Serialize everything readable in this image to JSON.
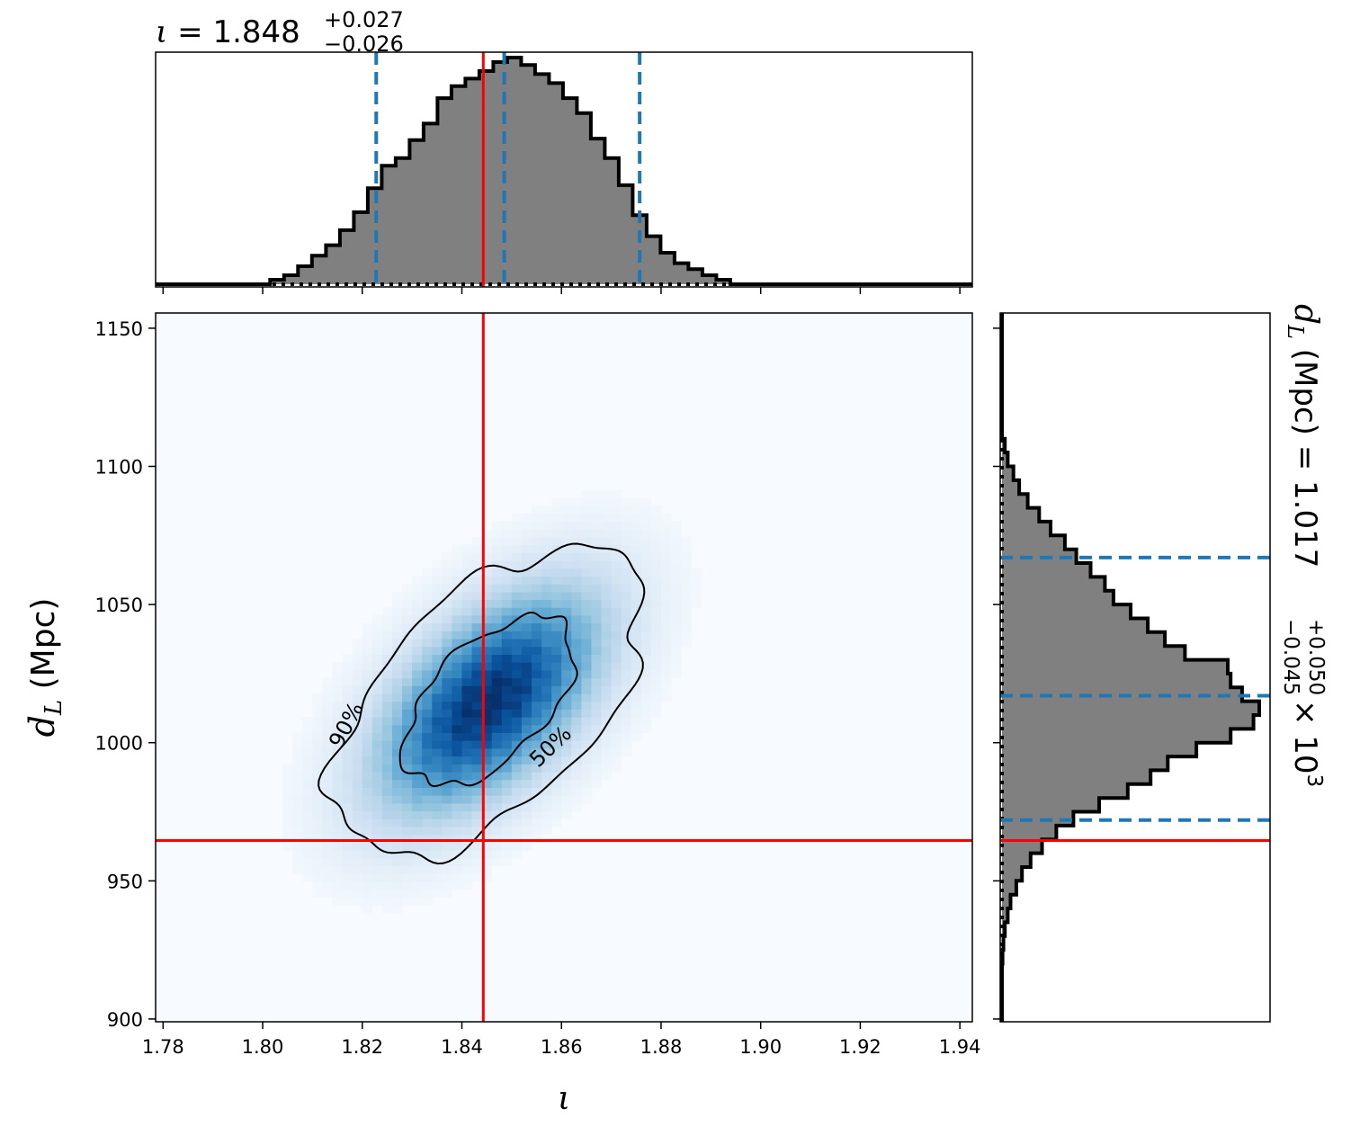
{
  "chart_data": {
    "type": "corner",
    "parameters": [
      "ι",
      "d_L"
    ],
    "top_title": {
      "symbol": "ι",
      "eq": " = ",
      "value": "1.848",
      "plus": "+0.027",
      "minus": "−0.026"
    },
    "right_title": {
      "symbol": "d",
      "sub": "L",
      "units": " (Mpc) = ",
      "value": "1.017",
      "plus": "+0.050",
      "minus": "−0.045",
      "scale": "× 10",
      "exp": "3"
    },
    "xaxis": {
      "label": "ι",
      "range": [
        1.7785,
        1.9425
      ],
      "ticks": [
        1.78,
        1.8,
        1.82,
        1.84,
        1.86,
        1.88,
        1.9,
        1.92,
        1.94
      ],
      "tick_labels": [
        "1.78",
        "1.80",
        "1.82",
        "1.84",
        "1.86",
        "1.88",
        "1.90",
        "1.92",
        "1.94"
      ]
    },
    "yaxis": {
      "label_symbol": "d",
      "label_sub": "L",
      "label_units": " (Mpc)",
      "range": [
        899,
        1155.5
      ],
      "ticks": [
        900,
        950,
        1000,
        1050,
        1100,
        1150
      ],
      "tick_labels": [
        "900",
        "950",
        "1000",
        "1050",
        "1100",
        "1150"
      ]
    },
    "injection": {
      "iota": 1.8443,
      "dL": 964.6
    },
    "iota_quantiles": [
      1.8228,
      1.8485,
      1.8757
    ],
    "dL_quantiles": [
      972.0,
      1017.0,
      1067.0
    ],
    "density": {
      "colormap": "Blues",
      "mean_iota": 1.8455,
      "mean_dL": 1015.0,
      "sd_iota": 0.0145,
      "sd_dL": 26.0,
      "correlation": 0.55
    },
    "contours": [
      {
        "label": "50%",
        "level": 0.5
      },
      {
        "label": "90%",
        "level": 0.9
      }
    ],
    "iota_histogram": {
      "bin_edges": [
        1.8015,
        1.8043,
        1.8071,
        1.8099,
        1.8127,
        1.8155,
        1.8183,
        1.8211,
        1.8239,
        1.8267,
        1.8295,
        1.8323,
        1.8351,
        1.8379,
        1.8407,
        1.8435,
        1.8463,
        1.8491,
        1.8519,
        1.8547,
        1.8575,
        1.8603,
        1.8631,
        1.8659,
        1.8687,
        1.8715,
        1.8743,
        1.8771,
        1.8799,
        1.8827,
        1.8855,
        1.8883,
        1.8911,
        1.8939
      ],
      "density": [
        0.03,
        0.06,
        0.12,
        0.19,
        0.26,
        0.36,
        0.48,
        0.64,
        0.79,
        0.84,
        0.96,
        1.07,
        1.24,
        1.32,
        1.37,
        1.42,
        1.48,
        1.51,
        1.46,
        1.4,
        1.34,
        1.24,
        1.14,
        0.97,
        0.84,
        0.66,
        0.46,
        0.32,
        0.21,
        0.14,
        0.1,
        0.06,
        0.03
      ]
    },
    "dL_histogram": {
      "bin_edges": [
        1110,
        1105,
        1100,
        1095,
        1090,
        1085,
        1080,
        1075,
        1070,
        1065,
        1060,
        1055,
        1050,
        1045,
        1040,
        1035,
        1030,
        1025,
        1020,
        1015,
        1010,
        1005,
        1000,
        995,
        990,
        985,
        980,
        975,
        970,
        965,
        960,
        955,
        950,
        945,
        940,
        935,
        930,
        925,
        920
      ],
      "density": [
        0.01,
        0.02,
        0.04,
        0.06,
        0.09,
        0.13,
        0.17,
        0.22,
        0.26,
        0.31,
        0.36,
        0.39,
        0.45,
        0.51,
        0.57,
        0.64,
        0.79,
        0.8,
        0.84,
        0.9,
        0.88,
        0.8,
        0.68,
        0.58,
        0.52,
        0.44,
        0.34,
        0.25,
        0.19,
        0.14,
        0.1,
        0.07,
        0.05,
        0.03,
        0.02,
        0.01,
        0.005,
        0.002
      ]
    },
    "colors": {
      "truth": "#ff0000",
      "quantile": "#1f77b4",
      "hist_fill": "#808080",
      "hist_edge": "#000000"
    }
  }
}
